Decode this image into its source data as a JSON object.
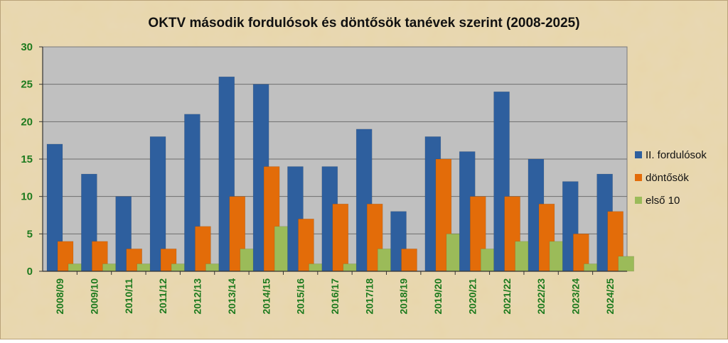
{
  "chart_data": {
    "type": "bar",
    "title": "OKTV második fordulósok és döntősök tanévek szerint (2008-2025)",
    "xlabel": "",
    "ylabel": "",
    "ylim": [
      0,
      30
    ],
    "yticks": [
      0,
      5,
      10,
      15,
      20,
      25,
      30
    ],
    "grid": true,
    "legend_position": "right",
    "categories": [
      "2008/09",
      "2009/10",
      "2010/11",
      "2011/12",
      "2012/13",
      "2013/14",
      "2014/15",
      "2015/16",
      "2016/17",
      "2017/18",
      "2018/19",
      "2019/20",
      "2020/21",
      "2021/22",
      "2022/23",
      "2023/24",
      "2024/25"
    ],
    "series": [
      {
        "name": "II. fordulósok",
        "color": "#2e5f9e",
        "values": [
          17,
          13,
          10,
          18,
          21,
          26,
          25,
          14,
          14,
          19,
          8,
          18,
          16,
          24,
          15,
          12,
          13
        ]
      },
      {
        "name": "döntősök",
        "color": "#e36c09",
        "values": [
          4,
          4,
          3,
          3,
          6,
          10,
          14,
          7,
          9,
          9,
          3,
          15,
          10,
          10,
          9,
          5,
          8
        ]
      },
      {
        "name": "első 10",
        "color": "#9bbb59",
        "values": [
          1,
          1,
          1,
          1,
          1,
          3,
          6,
          1,
          1,
          3,
          0,
          5,
          3,
          4,
          4,
          1,
          2
        ]
      }
    ],
    "colors": {
      "plot_background": "#c0c0c0",
      "page_background": "#e6d3a6",
      "tick_label": "#1d7a1d"
    }
  }
}
